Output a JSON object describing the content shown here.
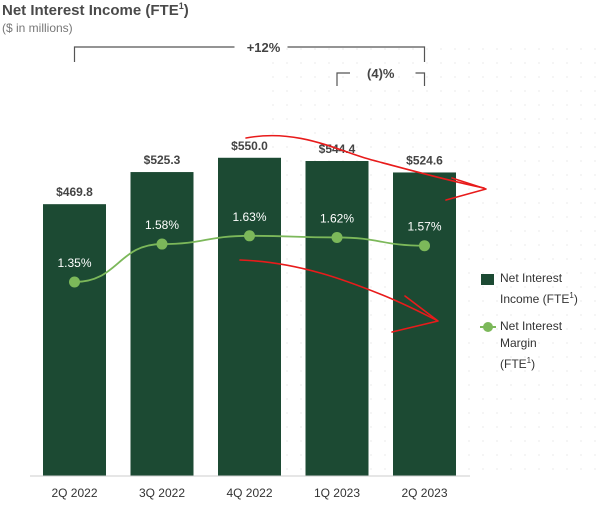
{
  "title": {
    "text": "Net Interest Income (FTE",
    "sup": "1",
    "close": ")"
  },
  "subtitle": "($ in millions)",
  "chart_data": {
    "type": "bar",
    "categories": [
      "2Q 2022",
      "3Q 2022",
      "4Q 2022",
      "1Q 2023",
      "2Q 2023"
    ],
    "series": [
      {
        "name": "Net Interest Income (FTE¹)",
        "type": "bar",
        "values": [
          469.8,
          525.3,
          550.0,
          544.4,
          524.6
        ],
        "labels": [
          "$469.8",
          "$525.3",
          "$550.0",
          "$544.4",
          "$524.6"
        ]
      },
      {
        "name": "Net Interest Margin (FTE¹)",
        "type": "line",
        "values": [
          1.35,
          1.58,
          1.63,
          1.62,
          1.57
        ],
        "labels": [
          "1.35%",
          "1.58%",
          "1.63%",
          "1.62%",
          "1.57%"
        ]
      }
    ],
    "annotations": [
      {
        "text": "+12%",
        "from": "2Q 2022",
        "to": "2Q 2023"
      },
      {
        "text": "(4)%",
        "from": "1Q 2023",
        "to": "2Q 2023"
      }
    ],
    "legend_position": "right",
    "colors": {
      "bar": "#1c4a33",
      "line": "#7cb85a",
      "arrows": "#e81b1b"
    }
  },
  "legend": {
    "nii": {
      "line1": "Net Interest",
      "line2": "Income (FTE",
      "sup": "1",
      "close": ")"
    },
    "nim": {
      "line1": "Net Interest",
      "line2": "Margin",
      "line3": "(FTE",
      "sup": "1",
      "close": ")"
    }
  }
}
